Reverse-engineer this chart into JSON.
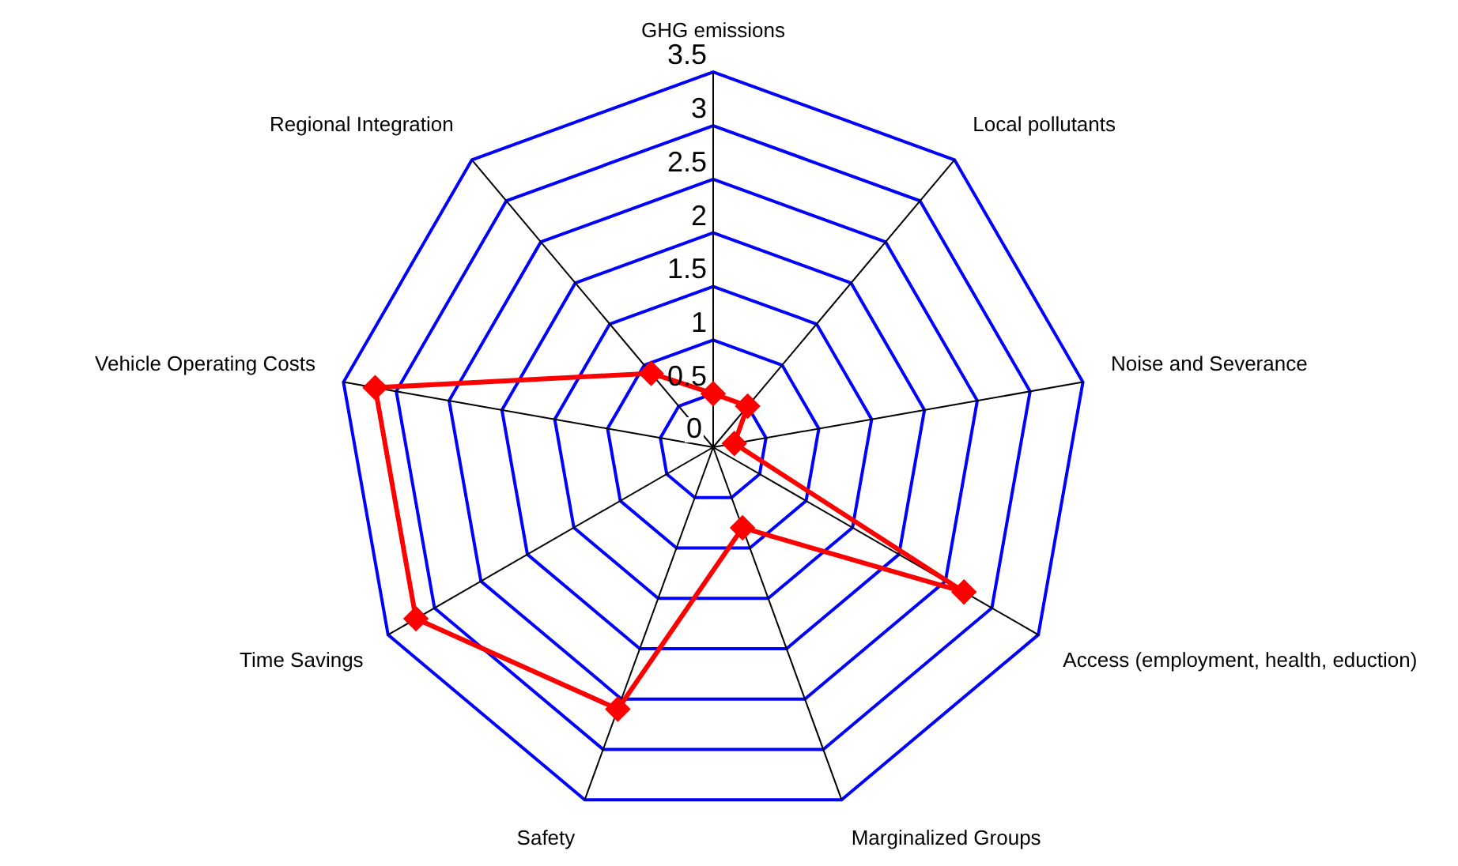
{
  "chart_data": {
    "type": "radar",
    "categories": [
      "GHG emissions",
      "Local pollutants",
      "Noise and Severance",
      "Access (employment, health, eduction)",
      "Marginalized Groups",
      "Safety",
      "Time Savings",
      "Vehicle Operating Costs",
      "Regional Integration"
    ],
    "series": [
      {
        "color": "#ff0000",
        "values": [
          0.5,
          0.5,
          0.2,
          2.7,
          0.8,
          2.6,
          3.2,
          3.2,
          0.9
        ]
      }
    ],
    "ylim": [
      0,
      3.5
    ],
    "yticks": [
      0,
      0.5,
      1,
      1.5,
      2,
      2.5,
      3,
      3.5
    ],
    "grid": true,
    "legend": false,
    "marker": "diamond",
    "line_style": "solid"
  }
}
